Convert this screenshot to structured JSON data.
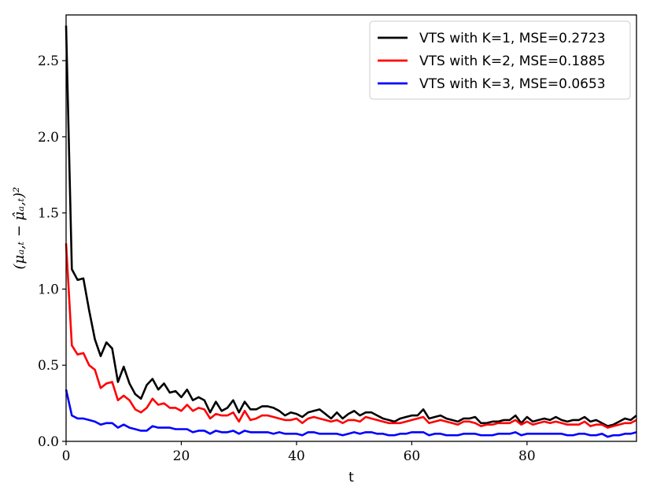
{
  "chart_data": {
    "type": "line",
    "title": "",
    "xlabel": "t",
    "ylabel": "(μₐ,ₜ − μ̂ₐ,ₜ)²",
    "xlim": [
      0,
      99
    ],
    "ylim": [
      0,
      2.8
    ],
    "xticks": [
      0,
      20,
      40,
      60,
      80
    ],
    "xtick_labels": [
      "0",
      "20",
      "40",
      "60",
      "80"
    ],
    "yticks": [
      0.0,
      0.5,
      1.0,
      1.5,
      2.0,
      2.5
    ],
    "ytick_labels": [
      "0.0",
      "0.5",
      "1.0",
      "1.5",
      "2.0",
      "2.5"
    ],
    "grid": false,
    "legend_position": "top-right",
    "series": [
      {
        "name": "VTS with K=1, MSE=0.2723",
        "color": "#000000",
        "values": [
          2.73,
          1.13,
          1.06,
          1.07,
          0.86,
          0.67,
          0.56,
          0.65,
          0.61,
          0.39,
          0.49,
          0.38,
          0.31,
          0.28,
          0.37,
          0.41,
          0.34,
          0.38,
          0.32,
          0.33,
          0.29,
          0.34,
          0.27,
          0.29,
          0.27,
          0.19,
          0.26,
          0.2,
          0.22,
          0.27,
          0.19,
          0.26,
          0.21,
          0.21,
          0.23,
          0.23,
          0.22,
          0.2,
          0.17,
          0.19,
          0.18,
          0.16,
          0.19,
          0.2,
          0.21,
          0.18,
          0.15,
          0.19,
          0.15,
          0.18,
          0.2,
          0.17,
          0.19,
          0.19,
          0.17,
          0.15,
          0.14,
          0.13,
          0.15,
          0.16,
          0.17,
          0.17,
          0.21,
          0.15,
          0.16,
          0.17,
          0.15,
          0.14,
          0.13,
          0.15,
          0.15,
          0.16,
          0.12,
          0.12,
          0.13,
          0.13,
          0.14,
          0.14,
          0.17,
          0.12,
          0.16,
          0.13,
          0.14,
          0.15,
          0.14,
          0.16,
          0.14,
          0.13,
          0.14,
          0.14,
          0.16,
          0.13,
          0.14,
          0.12,
          0.1,
          0.11,
          0.13,
          0.15,
          0.14,
          0.17
        ]
      },
      {
        "name": "VTS with K=2, MSE=0.1885",
        "color": "#ff0000",
        "values": [
          1.3,
          0.63,
          0.57,
          0.58,
          0.5,
          0.47,
          0.35,
          0.38,
          0.39,
          0.27,
          0.3,
          0.27,
          0.21,
          0.19,
          0.22,
          0.28,
          0.24,
          0.25,
          0.22,
          0.22,
          0.2,
          0.24,
          0.2,
          0.22,
          0.21,
          0.15,
          0.18,
          0.17,
          0.17,
          0.19,
          0.13,
          0.2,
          0.14,
          0.15,
          0.17,
          0.17,
          0.16,
          0.15,
          0.14,
          0.14,
          0.15,
          0.12,
          0.15,
          0.16,
          0.15,
          0.14,
          0.13,
          0.14,
          0.12,
          0.14,
          0.14,
          0.13,
          0.16,
          0.15,
          0.14,
          0.13,
          0.12,
          0.12,
          0.12,
          0.13,
          0.14,
          0.15,
          0.16,
          0.12,
          0.13,
          0.14,
          0.13,
          0.12,
          0.11,
          0.13,
          0.13,
          0.12,
          0.1,
          0.11,
          0.11,
          0.12,
          0.12,
          0.12,
          0.14,
          0.11,
          0.13,
          0.11,
          0.12,
          0.13,
          0.12,
          0.13,
          0.12,
          0.11,
          0.11,
          0.11,
          0.13,
          0.1,
          0.11,
          0.11,
          0.09,
          0.1,
          0.11,
          0.12,
          0.12,
          0.14
        ]
      },
      {
        "name": "VTS with K=3, MSE=0.0653",
        "color": "#0000ff",
        "values": [
          0.34,
          0.17,
          0.15,
          0.15,
          0.14,
          0.13,
          0.11,
          0.12,
          0.12,
          0.09,
          0.11,
          0.09,
          0.08,
          0.07,
          0.07,
          0.1,
          0.09,
          0.09,
          0.09,
          0.08,
          0.08,
          0.08,
          0.06,
          0.07,
          0.07,
          0.05,
          0.07,
          0.06,
          0.06,
          0.07,
          0.05,
          0.07,
          0.06,
          0.06,
          0.06,
          0.06,
          0.05,
          0.06,
          0.05,
          0.05,
          0.05,
          0.04,
          0.06,
          0.06,
          0.05,
          0.05,
          0.05,
          0.05,
          0.04,
          0.05,
          0.06,
          0.05,
          0.06,
          0.06,
          0.05,
          0.05,
          0.04,
          0.04,
          0.05,
          0.05,
          0.06,
          0.06,
          0.06,
          0.04,
          0.05,
          0.05,
          0.04,
          0.04,
          0.04,
          0.05,
          0.05,
          0.05,
          0.04,
          0.04,
          0.04,
          0.05,
          0.05,
          0.05,
          0.06,
          0.04,
          0.05,
          0.05,
          0.05,
          0.05,
          0.05,
          0.05,
          0.05,
          0.04,
          0.04,
          0.05,
          0.05,
          0.04,
          0.04,
          0.05,
          0.03,
          0.04,
          0.04,
          0.05,
          0.05,
          0.06
        ]
      }
    ]
  }
}
